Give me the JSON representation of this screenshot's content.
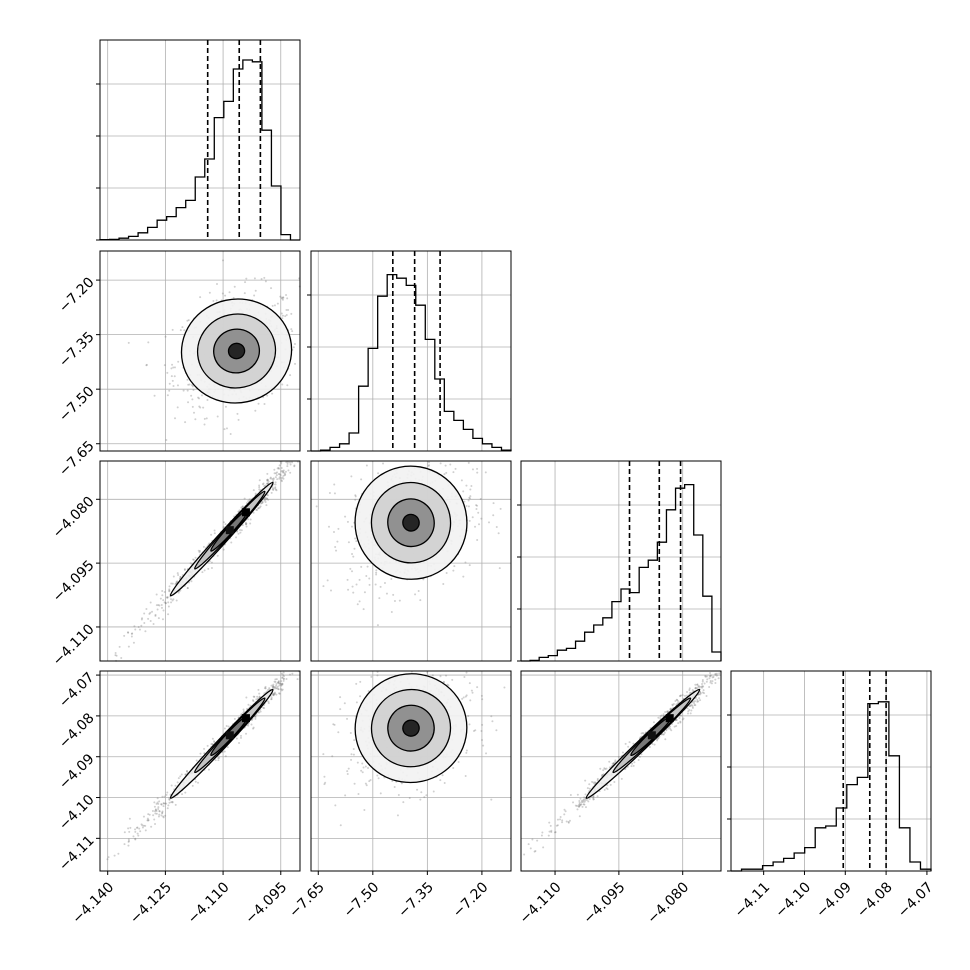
{
  "chart_data": {
    "type": "corner",
    "grid": true,
    "parameters": [
      {
        "range": [
          -4.142,
          -4.09
        ],
        "ticks": [
          -4.14,
          -4.125,
          -4.11,
          -4.095
        ],
        "tick_labels": [
          "−4.140",
          "−4.125",
          "−4.110",
          "−4.095"
        ]
      },
      {
        "range": [
          -7.67,
          -7.12
        ],
        "ticks": [
          -7.65,
          -7.5,
          -7.35,
          -7.2
        ],
        "tick_labels": [
          "−7.65",
          "−7.50",
          "−7.35",
          "−7.20"
        ]
      },
      {
        "range": [
          -4.118,
          -4.071
        ],
        "ticks": [
          -4.11,
          -4.095,
          -4.08
        ],
        "tick_labels": [
          "−4.110",
          "−4.095",
          "−4.080"
        ]
      },
      {
        "range": [
          -4.118,
          -4.069
        ],
        "ticks": [
          -4.11,
          -4.1,
          -4.09,
          -4.08,
          -4.07
        ],
        "tick_labels": [
          "−4.11",
          "−4.10",
          "−4.09",
          "−4.08",
          "−4.07"
        ]
      }
    ],
    "histograms": [
      {
        "counts": [
          0.2,
          0.3,
          1,
          2,
          4,
          7,
          11,
          13,
          18,
          22,
          35,
          45,
          68,
          77,
          95,
          100,
          99,
          61,
          30,
          3,
          0
        ],
        "quantiles": [
          -4.114,
          -4.1058,
          -4.1003
        ]
      },
      {
        "counts": [
          0,
          0.5,
          2,
          4,
          10,
          36,
          57,
          86,
          98,
          96,
          92,
          81,
          62,
          40,
          22,
          17,
          12,
          7,
          4,
          2,
          0.5
        ],
        "quantiles": [
          -7.445,
          -7.385,
          -7.315
        ]
      },
      {
        "counts": [
          0,
          0.3,
          2,
          3,
          6,
          7,
          11,
          16,
          20,
          24,
          33,
          40,
          38,
          52,
          56,
          66,
          84,
          96,
          98,
          70,
          36,
          5
        ],
        "quantiles": [
          -4.0925,
          -4.0855,
          -4.0805
        ]
      },
      {
        "counts": [
          0,
          1,
          1,
          3,
          5,
          7,
          10,
          13,
          24,
          25,
          35,
          48,
          52,
          93,
          94,
          64,
          24,
          5,
          1
        ],
        "quantiles": [
          -4.0905,
          -4.084,
          -4.08
        ]
      }
    ]
  }
}
